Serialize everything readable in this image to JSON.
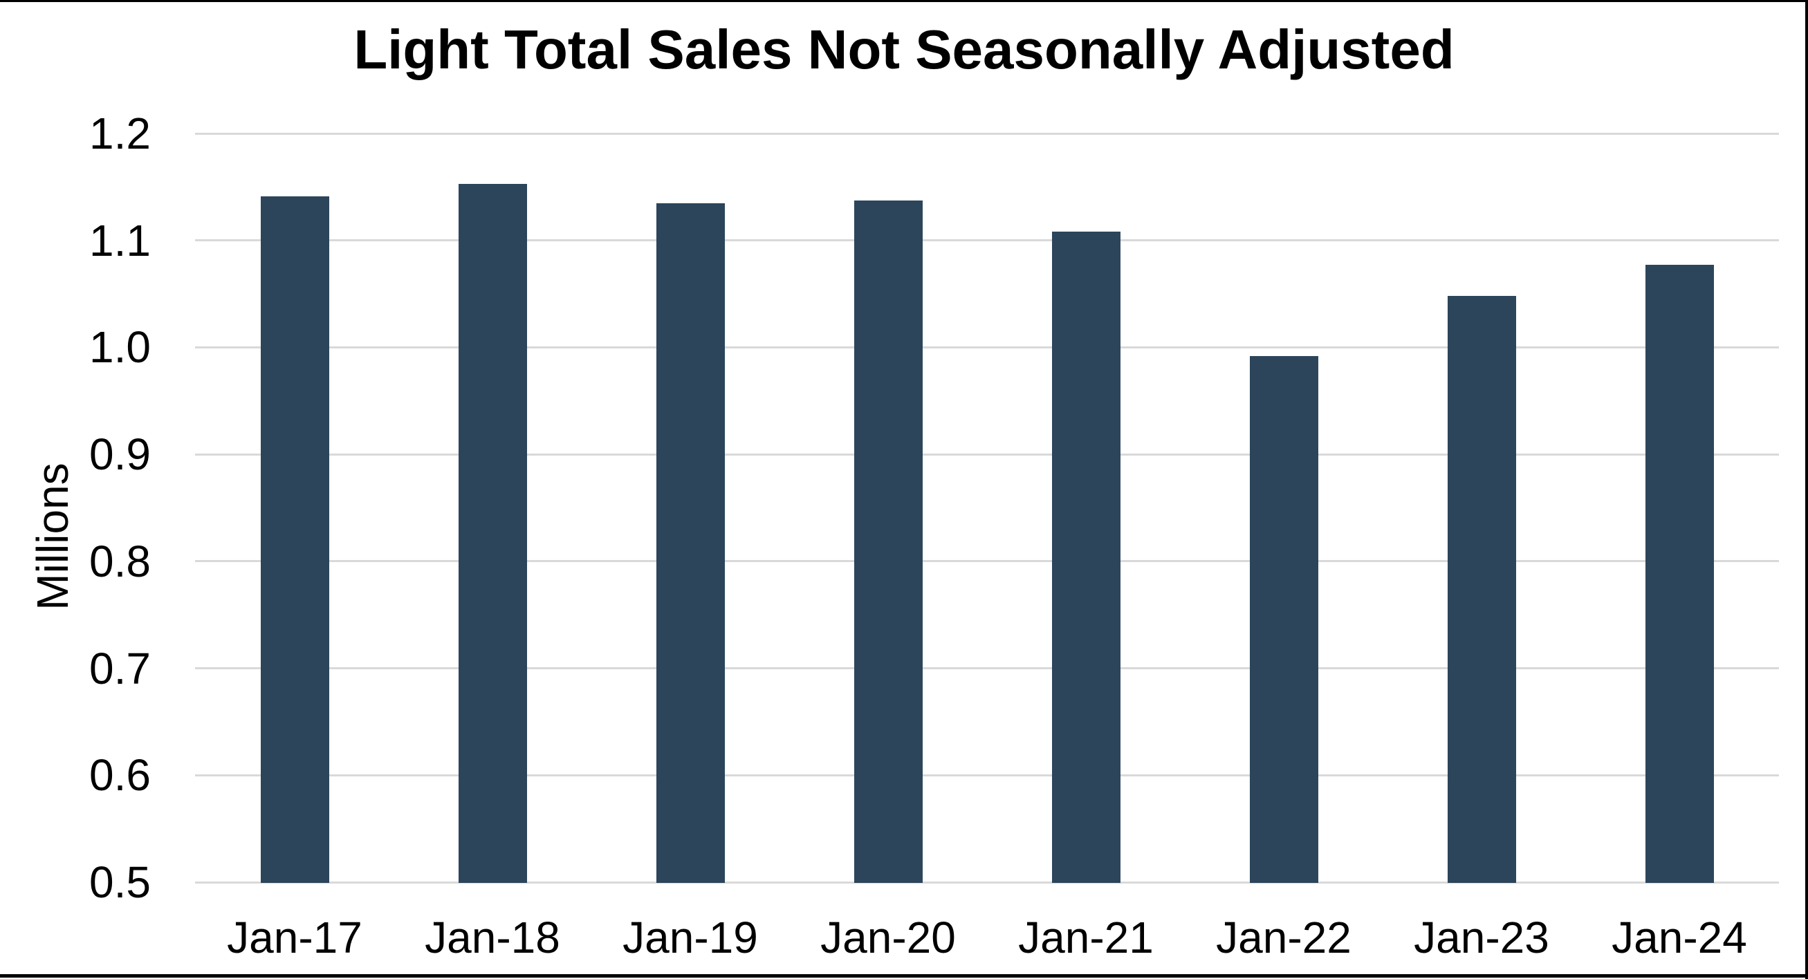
{
  "chart_data": {
    "type": "bar",
    "title": "Light Total Sales Not Seasonally Adjusted",
    "ylabel": "Millions",
    "xlabel": "",
    "categories": [
      "Jan-17",
      "Jan-18",
      "Jan-19",
      "Jan-20",
      "Jan-21",
      "Jan-22",
      "Jan-23",
      "Jan-24"
    ],
    "values": [
      1.141,
      1.153,
      1.135,
      1.137,
      1.108,
      0.992,
      1.048,
      1.077
    ],
    "series_name": "Light Total Sales",
    "ylim": [
      0.5,
      1.2
    ],
    "ytick_step": 0.1,
    "ytick_labels": [
      "1.2",
      "1.1",
      "1.0",
      "0.9",
      "0.8",
      "0.7",
      "0.6",
      "0.5"
    ],
    "grid": "horizontal",
    "legend_position": "none",
    "colors": {
      "bar": "#2C455B",
      "gridline": "#D9D9D9",
      "background": "#FFFFFF",
      "text": "#000000",
      "frame": "#000000"
    }
  }
}
